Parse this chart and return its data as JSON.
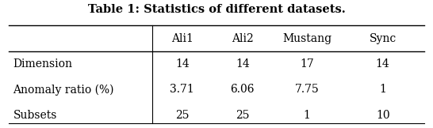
{
  "title": "Table 1: Statistics of different datasets.",
  "col_labels": [
    "",
    "Ali1",
    "Ali2",
    "Mustang",
    "Sync"
  ],
  "rows": [
    [
      "Dimension",
      "14",
      "14",
      "17",
      "14"
    ],
    [
      "Anomaly ratio (%)",
      "3.71",
      "6.06",
      "7.75",
      "1"
    ],
    [
      "Subsets",
      "25",
      "25",
      "1",
      "10"
    ]
  ],
  "background_color": "#ffffff",
  "title_fontsize": 10.5,
  "cell_fontsize": 10.0
}
